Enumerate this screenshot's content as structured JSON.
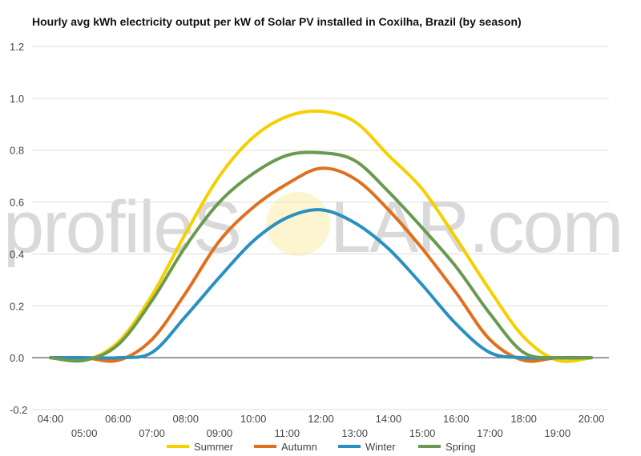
{
  "chart_data": {
    "type": "line",
    "title": "Hourly avg kWh electricity output per kW of Solar PV installed in Coxilha, Brazil (by season)",
    "xlabel": "",
    "ylabel": "",
    "ylim": [
      -0.2,
      1.2
    ],
    "yticks": [
      "-0.2",
      "0.0",
      "0.2",
      "0.4",
      "0.6",
      "0.8",
      "1.0",
      "1.2"
    ],
    "x": [
      "04:00",
      "05:00",
      "06:00",
      "07:00",
      "08:00",
      "09:00",
      "10:00",
      "11:00",
      "12:00",
      "13:00",
      "14:00",
      "15:00",
      "16:00",
      "17:00",
      "18:00",
      "19:00",
      "20:00"
    ],
    "grid": true,
    "legend_position": "bottom",
    "series": [
      {
        "name": "Summer",
        "color": "#f5d000",
        "values": [
          0.0,
          -0.01,
          0.06,
          0.24,
          0.48,
          0.7,
          0.85,
          0.93,
          0.95,
          0.91,
          0.78,
          0.65,
          0.46,
          0.26,
          0.08,
          -0.01,
          0.0
        ]
      },
      {
        "name": "Autumn",
        "color": "#e07020",
        "values": [
          0.0,
          0.0,
          -0.01,
          0.07,
          0.25,
          0.45,
          0.58,
          0.67,
          0.73,
          0.69,
          0.57,
          0.42,
          0.25,
          0.07,
          -0.01,
          0.0,
          0.0
        ]
      },
      {
        "name": "Winter",
        "color": "#2a90c0",
        "values": [
          0.0,
          0.0,
          0.0,
          0.02,
          0.16,
          0.31,
          0.45,
          0.54,
          0.57,
          0.52,
          0.42,
          0.28,
          0.13,
          0.02,
          0.0,
          0.0,
          0.0
        ]
      },
      {
        "name": "Spring",
        "color": "#6a9a50",
        "values": [
          0.0,
          -0.01,
          0.05,
          0.22,
          0.43,
          0.6,
          0.71,
          0.78,
          0.79,
          0.76,
          0.64,
          0.5,
          0.35,
          0.17,
          0.02,
          0.0,
          0.0
        ]
      }
    ]
  },
  "watermark": {
    "left": "profileS",
    "right": "LAR.com"
  }
}
